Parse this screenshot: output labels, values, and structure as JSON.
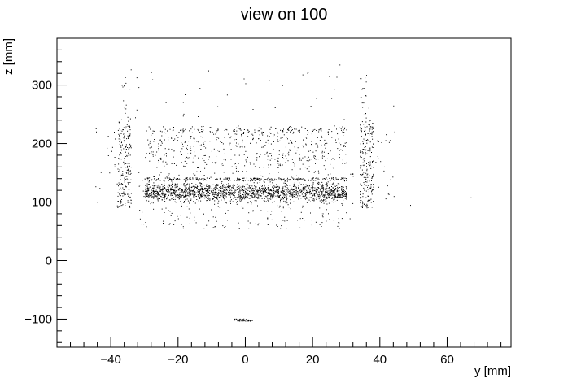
{
  "chart_data": {
    "type": "scatter",
    "title": "view on 100",
    "xlabel": "y [mm]",
    "ylabel": "z [mm]",
    "xlim": [
      -56,
      79
    ],
    "ylim": [
      -148,
      380
    ],
    "xticks": [
      -40,
      -20,
      0,
      20,
      40,
      60
    ],
    "yticks": [
      -100,
      0,
      100,
      200,
      300
    ],
    "xtick_labels": [
      "−40",
      "−20",
      "0",
      "20",
      "40",
      "60"
    ],
    "ytick_labels": [
      "−100",
      "0",
      "100",
      "200",
      "300"
    ],
    "grid": false,
    "point_color": "#000000",
    "frame_color": "#000000",
    "background": "#ffffff",
    "regions": [
      {
        "region": "dense core band",
        "y_range": [
          -30,
          30
        ],
        "z_range": [
          95,
          140
        ],
        "points": 1700
      },
      {
        "region": "band halo",
        "y_range": [
          -32,
          32
        ],
        "z_range": [
          55,
          160
        ],
        "points": 350
      },
      {
        "region": "top edge line",
        "y_range": [
          -30,
          30
        ],
        "z_range": [
          137,
          142
        ],
        "points": 260
      },
      {
        "region": "upper sparse band",
        "y_range": [
          -30,
          30
        ],
        "z_range": [
          160,
          230
        ],
        "points": 500
      },
      {
        "region": "upper band top edge",
        "y_range": [
          -30,
          30
        ],
        "z_range": [
          220,
          226
        ],
        "points": 60
      },
      {
        "region": "upper scattered",
        "y_range": [
          -35,
          44
        ],
        "z_range": [
          230,
          330
        ],
        "points": 35
      },
      {
        "region": "left column",
        "y_range": [
          -38,
          -34
        ],
        "z_range": [
          90,
          240
        ],
        "points": 220
      },
      {
        "region": "left column tail",
        "y_range": [
          -37,
          -35
        ],
        "z_range": [
          240,
          320
        ],
        "points": 15
      },
      {
        "region": "right column",
        "y_range": [
          34,
          38
        ],
        "z_range": [
          90,
          240
        ],
        "points": 220
      },
      {
        "region": "right column tail",
        "y_range": [
          34,
          36
        ],
        "z_range": [
          240,
          320
        ],
        "points": 18
      },
      {
        "region": "left outliers",
        "y_range": [
          -45,
          -38
        ],
        "z_range": [
          90,
          230
        ],
        "points": 20
      },
      {
        "region": "right outliers",
        "y_range": [
          38,
          45
        ],
        "z_range": [
          95,
          230
        ],
        "points": 25
      },
      {
        "region": "cluster near z=-100",
        "y_range": [
          -4,
          2
        ],
        "z_range": [
          -103,
          -99
        ],
        "points": 45
      }
    ],
    "outlier_points": [
      {
        "y": 67,
        "z": 108
      },
      {
        "y": 49,
        "z": 95
      },
      {
        "y": 44,
        "z": 265
      },
      {
        "y": -11,
        "z": 325
      },
      {
        "y": -6,
        "z": 323
      },
      {
        "y": 17,
        "z": 318
      },
      {
        "y": 28,
        "z": 335
      },
      {
        "y": -28,
        "z": 322
      },
      {
        "y": -44,
        "z": 100
      },
      {
        "y": 0,
        "z": 303
      },
      {
        "y": 11,
        "z": 300
      }
    ]
  }
}
